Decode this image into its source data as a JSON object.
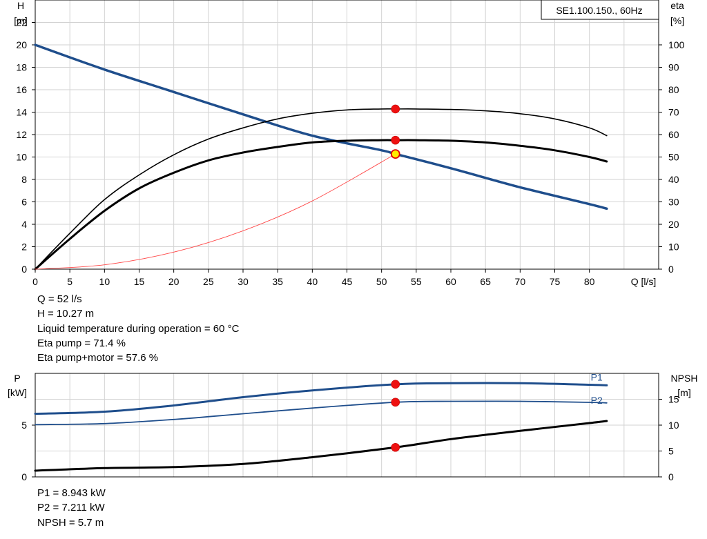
{
  "chart_data": [
    {
      "type": "line",
      "title": "SE1.100.150., 60Hz",
      "xlabel": "Q [l/s]",
      "ylabel": [
        "H",
        "[m]"
      ],
      "y2label": [
        "eta",
        "[%]"
      ],
      "xlim": [
        0,
        90
      ],
      "ylim": [
        0,
        24
      ],
      "y2lim": [
        0,
        120
      ],
      "xticks": [
        0,
        5,
        10,
        15,
        20,
        25,
        30,
        35,
        40,
        45,
        50,
        55,
        60,
        65,
        70,
        75,
        80
      ],
      "yticks": [
        0,
        2,
        4,
        6,
        8,
        10,
        12,
        14,
        16,
        18,
        20,
        22
      ],
      "y2ticks": [
        0,
        10,
        20,
        30,
        40,
        50,
        60,
        70,
        80,
        90,
        100
      ],
      "grid": true,
      "series": [
        {
          "axis": "y",
          "color": "#1f4e8c",
          "width": 3.5,
          "x": [
            0,
            10,
            20,
            30,
            40,
            50,
            52,
            60,
            70,
            80,
            82.5
          ],
          "y": [
            20.0,
            17.8,
            15.8,
            13.8,
            11.9,
            10.6,
            10.27,
            9.0,
            7.3,
            5.8,
            5.4
          ]
        },
        {
          "axis": "y2",
          "color": "#000000",
          "width": 1.6,
          "x": [
            0,
            5,
            10,
            15,
            20,
            25,
            30,
            35,
            40,
            45,
            50,
            52,
            55,
            60,
            65,
            70,
            75,
            80,
            82.5
          ],
          "y": [
            0,
            16,
            31,
            42,
            51,
            58,
            63,
            67,
            69.5,
            71,
            71.4,
            71.4,
            71.4,
            71.2,
            70.6,
            69.3,
            67,
            63,
            59.5
          ]
        },
        {
          "axis": "y",
          "color": "#000000",
          "width": 3,
          "x": [
            0,
            5,
            10,
            15,
            20,
            25,
            30,
            35,
            40,
            45,
            50,
            52,
            55,
            60,
            65,
            70,
            75,
            80,
            82.5
          ],
          "y": [
            0,
            2.7,
            5.2,
            7.2,
            8.6,
            9.7,
            10.4,
            10.9,
            11.3,
            11.45,
            11.5,
            11.5,
            11.5,
            11.45,
            11.3,
            11.0,
            10.6,
            10.0,
            9.6
          ]
        },
        {
          "axis": "y",
          "color": "#ff4a4a",
          "width": 0.9,
          "x": [
            0,
            10,
            20,
            30,
            40,
            52
          ],
          "y": [
            0,
            0.39,
            1.52,
            3.42,
            6.08,
            10.27
          ]
        }
      ],
      "markers": [
        {
          "axis": "y2",
          "x": 52,
          "y": 71.4,
          "fill": "#ee1111"
        },
        {
          "axis": "y",
          "x": 52,
          "y": 11.5,
          "fill": "#ee1111"
        },
        {
          "axis": "y",
          "x": 52,
          "y": 10.27,
          "fill": "#ffee00"
        }
      ]
    },
    {
      "type": "line",
      "ylabel": [
        "P",
        "[kW]"
      ],
      "y2label": [
        "NPSH",
        "[m]"
      ],
      "xlim": [
        0,
        90
      ],
      "ylim": [
        0,
        10
      ],
      "y2lim": [
        0,
        20
      ],
      "yticks": [
        0,
        5
      ],
      "y2ticks": [
        0,
        5,
        10,
        15
      ],
      "grid": true,
      "series": [
        {
          "name": "P1",
          "axis": "y",
          "color": "#1f4e8c",
          "width": 3,
          "x": [
            0,
            10,
            20,
            30,
            40,
            52,
            60,
            70,
            80,
            82.5
          ],
          "y": [
            6.1,
            6.3,
            6.9,
            7.7,
            8.35,
            8.943,
            9.05,
            9.05,
            8.9,
            8.85
          ]
        },
        {
          "name": "P2",
          "axis": "y",
          "color": "#1f4e8c",
          "width": 1.8,
          "x": [
            0,
            10,
            20,
            30,
            40,
            52,
            60,
            70,
            80,
            82.5
          ],
          "y": [
            5.05,
            5.15,
            5.55,
            6.1,
            6.65,
            7.211,
            7.3,
            7.3,
            7.2,
            7.15
          ]
        },
        {
          "axis": "y2",
          "color": "#000000",
          "width": 3,
          "x": [
            0,
            10,
            20,
            30,
            40,
            52,
            60,
            70,
            80,
            82.5
          ],
          "y": [
            1.2,
            1.7,
            1.9,
            2.5,
            3.8,
            5.7,
            7.3,
            8.9,
            10.4,
            10.8
          ]
        }
      ],
      "markers": [
        {
          "axis": "y",
          "x": 52,
          "y": 8.943,
          "fill": "#ee1111"
        },
        {
          "axis": "y",
          "x": 52,
          "y": 7.211,
          "fill": "#ee1111"
        },
        {
          "axis": "y2",
          "x": 52,
          "y": 5.7,
          "fill": "#ee1111"
        }
      ]
    }
  ],
  "operating_point": {
    "q": "Q = 52 l/s",
    "h": "H = 10.27 m",
    "temp": "Liquid temperature during operation = 60 °C",
    "eta_pump": "Eta pump = 71.4 %",
    "eta_total": "Eta pump+motor = 57.6 %"
  },
  "power": {
    "p1": "P1 = 8.943 kW",
    "p2": "P2 = 7.211 kW",
    "npsh": "NPSH = 5.7 m"
  }
}
